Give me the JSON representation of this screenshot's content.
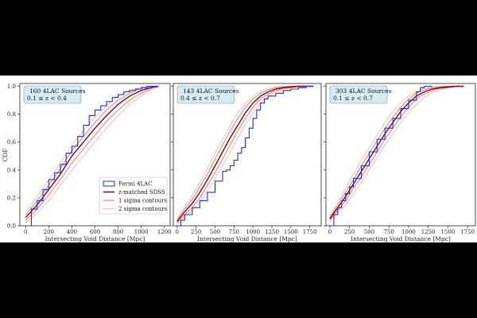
{
  "figure": {
    "ylabel": "CDF"
  },
  "legend": {
    "items": [
      {
        "label": "Fermi 4LAC",
        "color": "#1f2fd6",
        "kind": "step"
      },
      {
        "label": "z-matched SDSS",
        "color": "#8b0000",
        "kind": "line"
      },
      {
        "label": "1 sigma contours",
        "color": "#e07070",
        "kind": "line"
      },
      {
        "label": "2 sigma contours",
        "color": "#f3b8b8",
        "kind": "line"
      }
    ]
  },
  "chart_data": [
    {
      "type": "line",
      "title": "160 4LAC Sources",
      "subtitle": "0.1 ≤ z < 0.4",
      "xlabel": "Intersecting Void Distance [Mpc]",
      "ylabel": "CDF",
      "xlim": [
        -50,
        1250
      ],
      "ylim": [
        0,
        1.02
      ],
      "xticks": [
        0,
        200,
        400,
        600,
        800,
        1000,
        1200
      ],
      "yticks": [
        0.0,
        0.2,
        0.4,
        0.6,
        0.8,
        1.0
      ],
      "series": [
        {
          "name": "Fermi 4LAC",
          "x": [
            0,
            50,
            100,
            150,
            200,
            250,
            300,
            350,
            400,
            450,
            500,
            550,
            600,
            650,
            700,
            750,
            800,
            850,
            900,
            950,
            1000,
            1050,
            1100,
            1150
          ],
          "y": [
            0.0,
            0.12,
            0.18,
            0.26,
            0.33,
            0.38,
            0.44,
            0.52,
            0.57,
            0.64,
            0.72,
            0.79,
            0.83,
            0.86,
            0.89,
            0.92,
            0.94,
            0.96,
            0.97,
            0.98,
            0.99,
            1.0,
            1.0,
            1.0
          ]
        },
        {
          "name": "z-matched SDSS",
          "x": [
            0,
            100,
            200,
            300,
            400,
            500,
            600,
            700,
            800,
            900,
            1000,
            1100,
            1150
          ],
          "y": [
            0.06,
            0.15,
            0.26,
            0.37,
            0.5,
            0.6,
            0.7,
            0.79,
            0.87,
            0.93,
            0.97,
            0.995,
            1.0
          ]
        },
        {
          "name": "1 sigma upper",
          "x": [
            0,
            100,
            200,
            300,
            400,
            500,
            600,
            700,
            800,
            900,
            1000,
            1100,
            1150
          ],
          "y": [
            0.08,
            0.18,
            0.29,
            0.41,
            0.54,
            0.64,
            0.74,
            0.83,
            0.9,
            0.95,
            0.985,
            1.0,
            1.0
          ]
        },
        {
          "name": "1 sigma lower",
          "x": [
            0,
            100,
            200,
            300,
            400,
            500,
            600,
            700,
            800,
            900,
            1000,
            1100,
            1150
          ],
          "y": [
            0.04,
            0.12,
            0.22,
            0.33,
            0.45,
            0.55,
            0.65,
            0.75,
            0.83,
            0.9,
            0.95,
            0.99,
            1.0
          ]
        },
        {
          "name": "2 sigma upper",
          "x": [
            0,
            100,
            200,
            300,
            400,
            500,
            600,
            700,
            800,
            900,
            1000,
            1100,
            1150
          ],
          "y": [
            0.1,
            0.21,
            0.33,
            0.45,
            0.58,
            0.68,
            0.78,
            0.86,
            0.93,
            0.97,
            0.995,
            1.0,
            1.0
          ]
        },
        {
          "name": "2 sigma lower",
          "x": [
            0,
            100,
            200,
            300,
            400,
            500,
            600,
            700,
            800,
            900,
            1000,
            1100,
            1150
          ],
          "y": [
            0.02,
            0.09,
            0.18,
            0.29,
            0.4,
            0.5,
            0.6,
            0.7,
            0.79,
            0.87,
            0.93,
            0.98,
            1.0
          ]
        }
      ]
    },
    {
      "type": "line",
      "title": "143 4LAC Sources",
      "subtitle": "0.4 ≤ z < 0.7",
      "xlabel": "Intersecting Void Distance [Mpc]",
      "ylabel": "",
      "xlim": [
        -50,
        1900
      ],
      "ylim": [
        0,
        1.02
      ],
      "xticks": [
        0,
        250,
        500,
        750,
        1000,
        1250,
        1500,
        1750
      ],
      "yticks": [
        0.0,
        0.2,
        0.4,
        0.6,
        0.8,
        1.0
      ],
      "series": [
        {
          "name": "Fermi 4LAC",
          "x": [
            0,
            50,
            100,
            200,
            300,
            400,
            500,
            600,
            650,
            700,
            750,
            800,
            850,
            900,
            950,
            1000,
            1050,
            1100,
            1150,
            1200,
            1300,
            1400,
            1500,
            1600,
            1700,
            1800
          ],
          "y": [
            0.0,
            0.04,
            0.08,
            0.13,
            0.18,
            0.24,
            0.32,
            0.39,
            0.4,
            0.43,
            0.47,
            0.52,
            0.56,
            0.63,
            0.7,
            0.77,
            0.83,
            0.88,
            0.91,
            0.93,
            0.95,
            0.97,
            0.98,
            0.99,
            1.0,
            1.0
          ]
        },
        {
          "name": "z-matched SDSS",
          "x": [
            0,
            100,
            200,
            300,
            400,
            500,
            600,
            700,
            800,
            900,
            1000,
            1100,
            1200,
            1300,
            1400,
            1500,
            1600,
            1700,
            1800
          ],
          "y": [
            0.03,
            0.1,
            0.16,
            0.24,
            0.33,
            0.43,
            0.53,
            0.63,
            0.72,
            0.81,
            0.88,
            0.93,
            0.96,
            0.98,
            0.99,
            0.995,
            1.0,
            1.0,
            1.0
          ]
        },
        {
          "name": "1 sigma upper",
          "x": [
            0,
            100,
            200,
            300,
            400,
            500,
            600,
            700,
            800,
            900,
            1000,
            1100,
            1200,
            1300,
            1400,
            1500,
            1600,
            1700,
            1800
          ],
          "y": [
            0.04,
            0.12,
            0.19,
            0.28,
            0.37,
            0.48,
            0.58,
            0.68,
            0.77,
            0.85,
            0.91,
            0.95,
            0.975,
            0.99,
            0.995,
            1.0,
            1.0,
            1.0,
            1.0
          ]
        },
        {
          "name": "1 sigma lower",
          "x": [
            0,
            100,
            200,
            300,
            400,
            500,
            600,
            700,
            800,
            900,
            1000,
            1100,
            1200,
            1300,
            1400,
            1500,
            1600,
            1700,
            1800
          ],
          "y": [
            0.02,
            0.08,
            0.13,
            0.2,
            0.29,
            0.38,
            0.48,
            0.58,
            0.68,
            0.77,
            0.85,
            0.91,
            0.945,
            0.97,
            0.985,
            0.99,
            1.0,
            1.0,
            1.0
          ]
        },
        {
          "name": "2 sigma upper",
          "x": [
            0,
            100,
            200,
            300,
            400,
            500,
            600,
            700,
            800,
            900,
            1000,
            1100,
            1200,
            1300,
            1400,
            1500,
            1600,
            1700,
            1800
          ],
          "y": [
            0.05,
            0.14,
            0.22,
            0.31,
            0.41,
            0.52,
            0.62,
            0.72,
            0.81,
            0.88,
            0.93,
            0.965,
            0.985,
            0.995,
            1.0,
            1.0,
            1.0,
            1.0,
            1.0
          ]
        },
        {
          "name": "2 sigma lower",
          "x": [
            0,
            100,
            200,
            300,
            400,
            500,
            600,
            700,
            800,
            900,
            1000,
            1100,
            1200,
            1300,
            1400,
            1500,
            1600,
            1700,
            1800
          ],
          "y": [
            0.01,
            0.06,
            0.11,
            0.17,
            0.25,
            0.34,
            0.43,
            0.53,
            0.63,
            0.72,
            0.81,
            0.88,
            0.93,
            0.96,
            0.98,
            0.99,
            0.995,
            1.0,
            1.0
          ]
        }
      ]
    },
    {
      "type": "line",
      "title": "303 4LAC Sources",
      "subtitle": "0.1 ≤ z < 0.7",
      "xlabel": "Intersecting Void Distance [Mpc]",
      "ylabel": "",
      "xlim": [
        -50,
        1850
      ],
      "ylim": [
        0,
        1.02
      ],
      "xticks": [
        0,
        250,
        500,
        750,
        1000,
        1250,
        1500,
        1750
      ],
      "yticks": [
        0.0,
        0.2,
        0.4,
        0.6,
        0.8,
        1.0
      ],
      "series": [
        {
          "name": "Fermi 4LAC",
          "x": [
            0,
            50,
            100,
            150,
            200,
            250,
            300,
            400,
            500,
            600,
            700,
            800,
            900,
            1000,
            1100,
            1150,
            1200,
            1300
          ],
          "y": [
            0.0,
            0.08,
            0.13,
            0.18,
            0.23,
            0.28,
            0.34,
            0.43,
            0.53,
            0.62,
            0.7,
            0.77,
            0.84,
            0.9,
            0.96,
            0.99,
            1.0,
            1.0
          ]
        },
        {
          "name": "z-matched SDSS",
          "x": [
            0,
            100,
            200,
            300,
            400,
            500,
            600,
            700,
            800,
            900,
            1000,
            1100,
            1200,
            1300,
            1400,
            1500,
            1600,
            1700
          ],
          "y": [
            0.05,
            0.13,
            0.21,
            0.3,
            0.39,
            0.48,
            0.57,
            0.66,
            0.74,
            0.82,
            0.88,
            0.93,
            0.96,
            0.98,
            0.99,
            0.995,
            1.0,
            1.0
          ]
        },
        {
          "name": "1 sigma upper",
          "x": [
            0,
            100,
            200,
            300,
            400,
            500,
            600,
            700,
            800,
            900,
            1000,
            1100,
            1200,
            1300,
            1400,
            1500,
            1600,
            1700
          ],
          "y": [
            0.06,
            0.15,
            0.24,
            0.33,
            0.43,
            0.52,
            0.61,
            0.7,
            0.78,
            0.85,
            0.91,
            0.95,
            0.975,
            0.99,
            0.995,
            1.0,
            1.0,
            1.0
          ]
        },
        {
          "name": "1 sigma lower",
          "x": [
            0,
            100,
            200,
            300,
            400,
            500,
            600,
            700,
            800,
            900,
            1000,
            1100,
            1200,
            1300,
            1400,
            1500,
            1600,
            1700
          ],
          "y": [
            0.04,
            0.11,
            0.18,
            0.27,
            0.35,
            0.44,
            0.53,
            0.62,
            0.7,
            0.78,
            0.85,
            0.91,
            0.945,
            0.97,
            0.985,
            0.99,
            1.0,
            1.0
          ]
        },
        {
          "name": "2 sigma upper",
          "x": [
            0,
            100,
            200,
            300,
            400,
            500,
            600,
            700,
            800,
            900,
            1000,
            1100,
            1200,
            1300,
            1400,
            1500,
            1600,
            1700
          ],
          "y": [
            0.07,
            0.17,
            0.27,
            0.37,
            0.47,
            0.56,
            0.65,
            0.74,
            0.82,
            0.88,
            0.93,
            0.965,
            0.985,
            0.995,
            1.0,
            1.0,
            1.0,
            1.0
          ]
        },
        {
          "name": "2 sigma lower",
          "x": [
            0,
            100,
            200,
            300,
            400,
            500,
            600,
            700,
            800,
            900,
            1000,
            1100,
            1200,
            1300,
            1400,
            1500,
            1600,
            1700
          ],
          "y": [
            0.03,
            0.09,
            0.15,
            0.23,
            0.31,
            0.4,
            0.49,
            0.58,
            0.66,
            0.74,
            0.81,
            0.87,
            0.92,
            0.955,
            0.975,
            0.99,
            0.995,
            1.0
          ]
        }
      ]
    }
  ]
}
